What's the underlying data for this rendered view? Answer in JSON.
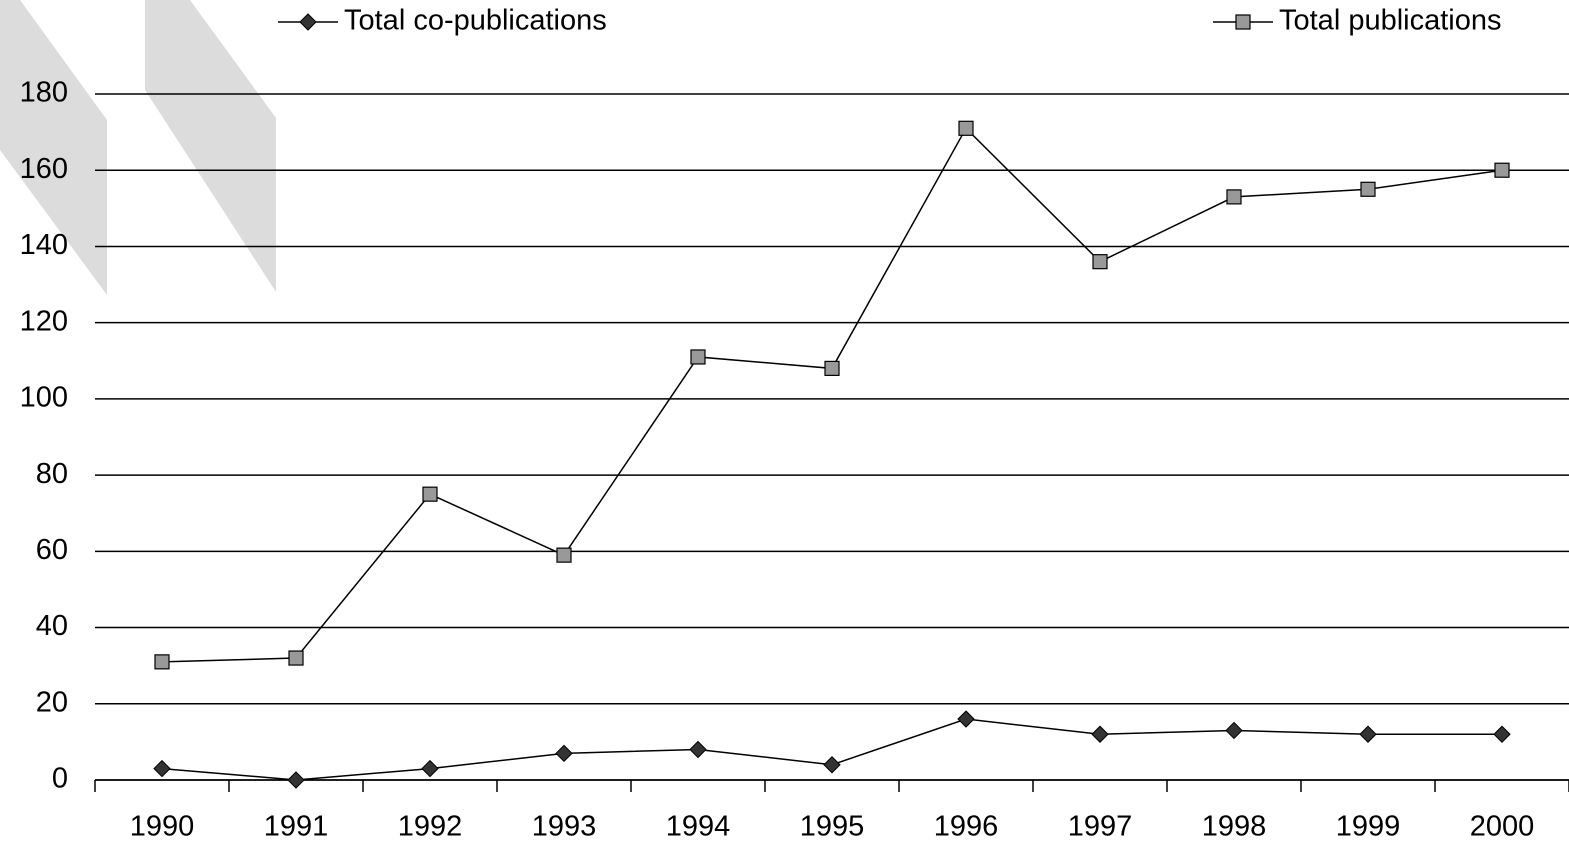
{
  "chart_data": {
    "type": "line",
    "categories": [
      "1990",
      "1991",
      "1992",
      "1993",
      "1994",
      "1995",
      "1996",
      "1997",
      "1998",
      "1999",
      "2000"
    ],
    "series": [
      {
        "name": "Total co-publications",
        "color": "#333333",
        "marker": "diamond",
        "values": [
          3,
          0,
          3,
          7,
          8,
          4,
          16,
          12,
          13,
          12,
          12
        ]
      },
      {
        "name": "Total publications",
        "color": "#999999",
        "marker": "square",
        "values": [
          31,
          32,
          75,
          59,
          111,
          108,
          171,
          136,
          153,
          155,
          160
        ]
      }
    ],
    "ylim": [
      0,
      180
    ],
    "yticks": [
      0,
      20,
      40,
      60,
      80,
      100,
      120,
      140,
      160,
      180
    ],
    "grid": true
  }
}
